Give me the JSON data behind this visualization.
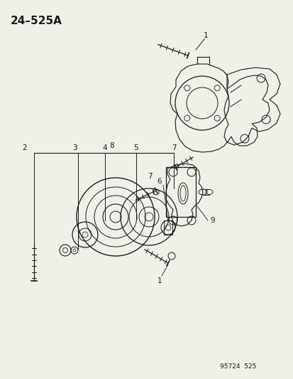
{
  "title": "24–525A",
  "bg_color": "#f0efe8",
  "line_color": "#1a1a1a",
  "footer": "95724  525",
  "line_color2": "#333333"
}
